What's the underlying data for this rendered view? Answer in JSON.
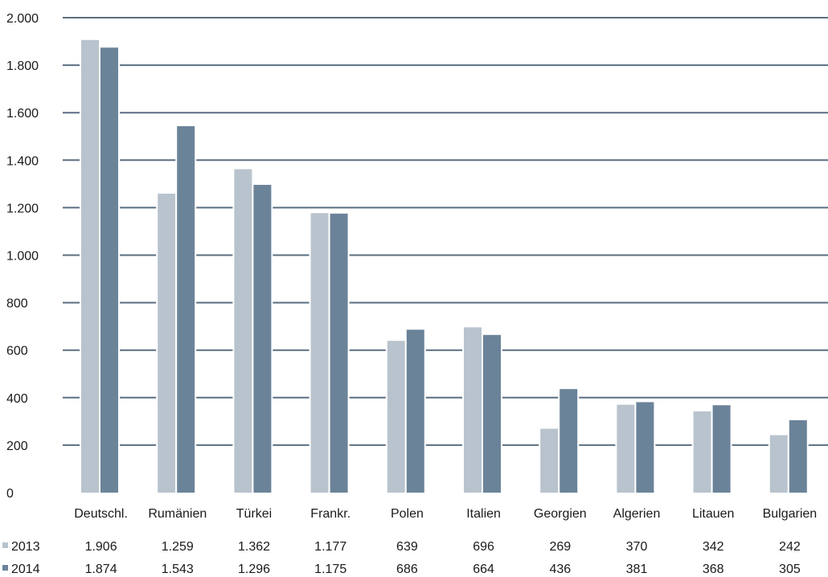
{
  "colors": {
    "series_2013": "#b8c3cd",
    "series_2014": "#6b8399",
    "gridline": "#5a6f82",
    "text": "#1a1a1a"
  },
  "chart_data": {
    "type": "bar",
    "title": "",
    "xlabel": "",
    "ylabel": "",
    "categories": [
      "Deutschl.",
      "Rumänien",
      "Türkei",
      "Frankr.",
      "Polen",
      "Italien",
      "Georgien",
      "Algerien",
      "Litauen",
      "Bulgarien"
    ],
    "series": [
      {
        "name": "2013",
        "values": [
          1906,
          1259,
          1362,
          1177,
          639,
          696,
          269,
          370,
          342,
          242
        ]
      },
      {
        "name": "2014",
        "values": [
          1874,
          1543,
          1296,
          1175,
          686,
          664,
          436,
          381,
          368,
          305
        ]
      }
    ],
    "ylim": [
      0,
      2000
    ],
    "yticks": [
      0,
      200,
      400,
      600,
      800,
      1000,
      1200,
      1400,
      1600,
      1800,
      2000
    ],
    "ytick_labels": [
      "0",
      "200",
      "400",
      "600",
      "800",
      "1.000",
      "1.200",
      "1.400",
      "1.600",
      "1.800",
      "2.000"
    ],
    "grid": true,
    "legend": "data-table-below",
    "data_table": {
      "rows": [
        {
          "label": "2013",
          "values": [
            "1.906",
            "1.259",
            "1.362",
            "1.177",
            "639",
            "696",
            "269",
            "370",
            "342",
            "242"
          ]
        },
        {
          "label": "2014",
          "values": [
            "1.874",
            "1.543",
            "1.296",
            "1.175",
            "686",
            "664",
            "436",
            "381",
            "368",
            "305"
          ]
        }
      ]
    }
  }
}
